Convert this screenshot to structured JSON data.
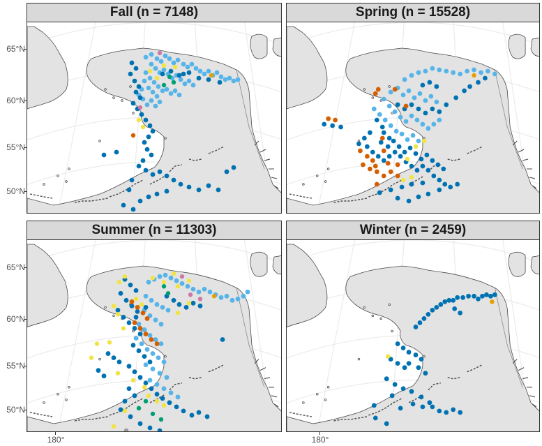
{
  "colors": {
    "land": "#e3e3e3",
    "coast": "#4a4a4a",
    "graticule": "#ebebeb",
    "light_blue": "#56b4e9",
    "dark_blue": "#0072b2",
    "orange_red": "#d55e00",
    "yellow": "#f0e442",
    "pink": "#cc79a7",
    "green": "#009e73",
    "orange": "#e69f00",
    "grey": "#999999"
  },
  "axes": {
    "lat_labels": [
      "65°N",
      "60°N",
      "55°N",
      "50°N"
    ],
    "lon_label": "180°"
  },
  "panels": [
    {
      "id": "fall",
      "title": "Fall (n = 7148)",
      "season": "Fall",
      "n": 7148
    },
    {
      "id": "spring",
      "title": "Spring (n = 15528)",
      "season": "Spring",
      "n": 15528
    },
    {
      "id": "summer",
      "title": "Summer (n = 11303)",
      "season": "Summer",
      "n": 11303
    },
    {
      "id": "winter",
      "title": "Winter (n = 2459)",
      "season": "Winter",
      "n": 2459
    }
  ]
}
